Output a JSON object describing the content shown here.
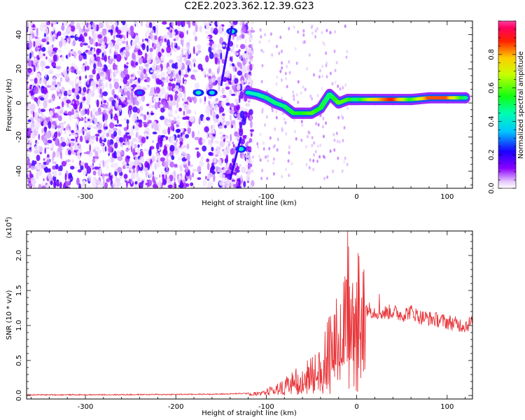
{
  "title": "C2E2.2023.362.12.39.G23",
  "chart_data": [
    {
      "type": "heatmap",
      "xlabel": "Height of straight line (km)",
      "ylabel": "Frequency (Hz)",
      "xlim": [
        -365,
        128
      ],
      "ylim": [
        -50,
        48
      ],
      "xticks": [
        -300,
        -200,
        -100,
        0,
        100
      ],
      "yticks": [
        -40,
        -20,
        0,
        20,
        40
      ],
      "colorbar": {
        "label": "Normalized spectral amplitude",
        "range": [
          0,
          1
        ],
        "ticks": [
          0.0,
          0.2,
          0.4,
          0.6,
          0.8
        ],
        "colormap": "rainbow (white-violet-blue-cyan-green-yellow-red-magenta)"
      },
      "signal_track": [
        {
          "x": -120,
          "y": 6,
          "amp": 0.45
        },
        {
          "x": -110,
          "y": 5,
          "amp": 0.45
        },
        {
          "x": -100,
          "y": 3,
          "amp": 0.5
        },
        {
          "x": -90,
          "y": 0,
          "amp": 0.5
        },
        {
          "x": -80,
          "y": -2,
          "amp": 0.5
        },
        {
          "x": -70,
          "y": -6,
          "amp": 0.55
        },
        {
          "x": -60,
          "y": -6,
          "amp": 0.55
        },
        {
          "x": -50,
          "y": -6,
          "amp": 0.6
        },
        {
          "x": -40,
          "y": -3,
          "amp": 0.55
        },
        {
          "x": -30,
          "y": 5,
          "amp": 0.5
        },
        {
          "x": -20,
          "y": 0,
          "amp": 0.6
        },
        {
          "x": -10,
          "y": 2,
          "amp": 0.6
        },
        {
          "x": 0,
          "y": 2,
          "amp": 0.5
        },
        {
          "x": 20,
          "y": 2,
          "amp": 0.75
        },
        {
          "x": 40,
          "y": 2,
          "amp": 0.9
        },
        {
          "x": 60,
          "y": 2,
          "amp": 0.55
        },
        {
          "x": 80,
          "y": 3,
          "amp": 0.85
        },
        {
          "x": 100,
          "y": 3,
          "amp": 0.85
        },
        {
          "x": 120,
          "y": 3,
          "amp": 0.5
        }
      ],
      "early_features": [
        {
          "x": -240,
          "y": 6,
          "amp": 0.3
        },
        {
          "x": -175,
          "y": 6,
          "amp": 0.45
        },
        {
          "x": -160,
          "y": 6,
          "amp": 0.4
        },
        {
          "x": -138,
          "y": 42,
          "amp": 0.45
        },
        {
          "x": -128,
          "y": -27,
          "amp": 0.45
        }
      ]
    },
    {
      "type": "line",
      "xlabel": "Height of straight line (km)",
      "ylabel": "SNR (10 * v/v)",
      "y_multiplier": "(x10",
      "y_multiplier_exp": "4",
      "xlim": [
        -365,
        128
      ],
      "ylim": [
        -0.05,
        2.35
      ],
      "xticks": [
        -300,
        -200,
        -100,
        0,
        100
      ],
      "yticks": [
        0.0,
        0.5,
        1.0,
        1.5,
        2.0
      ],
      "series": [
        {
          "color": "#e8363a",
          "envelope": {
            "x": [
              -365,
              -300,
              -200,
              -150,
              -120,
              -100,
              -80,
              -70,
              -60,
              -50,
              -40,
              -30,
              -20,
              -15,
              -10,
              -5,
              0,
              5,
              10,
              20,
              30,
              40,
              50,
              60,
              70,
              80,
              90,
              100,
              110,
              120,
              128
            ],
            "y": [
              0.01,
              0.01,
              0.015,
              0.02,
              0.03,
              0.06,
              0.15,
              0.25,
              0.3,
              0.35,
              0.45,
              0.7,
              0.85,
              1.1,
              1.25,
              1.2,
              1.15,
              1.3,
              1.25,
              1.2,
              1.18,
              1.2,
              1.15,
              1.2,
              1.12,
              1.1,
              1.08,
              1.05,
              1.02,
              1.0,
              1.05
            ]
          },
          "spikes": [
            {
              "x": -40,
              "y": 0.48
            },
            {
              "x": -28,
              "y": 0.75
            },
            {
              "x": -22,
              "y": 1.0
            },
            {
              "x": -18,
              "y": 1.3
            },
            {
              "x": -13,
              "y": 1.7
            },
            {
              "x": -10,
              "y": 2.35
            },
            {
              "x": -5,
              "y": 1.45
            },
            {
              "x": 3,
              "y": 1.35
            },
            {
              "x": 8,
              "y": 1.8
            },
            {
              "x": 25,
              "y": 1.45
            }
          ]
        }
      ]
    }
  ]
}
